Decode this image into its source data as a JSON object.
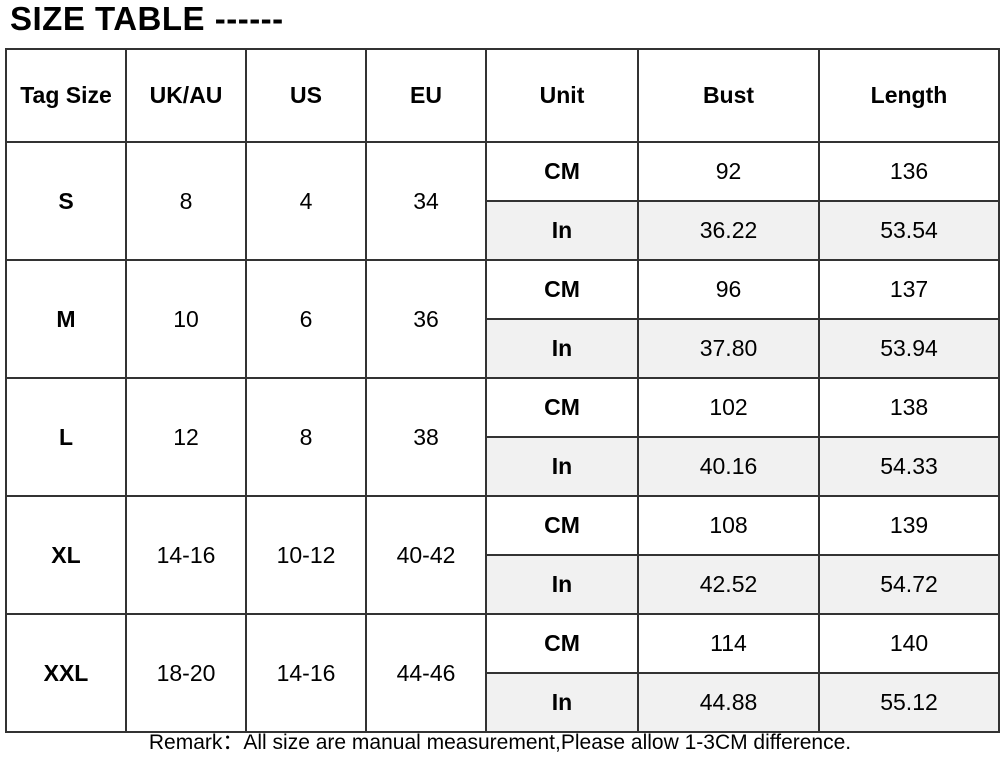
{
  "title": "SIZE TABLE ------",
  "headers": [
    "Tag Size",
    "UK/AU",
    "US",
    "EU",
    "Unit",
    "Bust",
    "Length"
  ],
  "rows": [
    {
      "tag": "S",
      "uk_au": "8",
      "us": "4",
      "eu": "34",
      "cm": {
        "unit": "CM",
        "bust": "92",
        "length": "136"
      },
      "in": {
        "unit": "In",
        "bust": "36.22",
        "length": "53.54"
      }
    },
    {
      "tag": "M",
      "uk_au": "10",
      "us": "6",
      "eu": "36",
      "cm": {
        "unit": "CM",
        "bust": "96",
        "length": "137"
      },
      "in": {
        "unit": "In",
        "bust": "37.80",
        "length": "53.94"
      }
    },
    {
      "tag": "L",
      "uk_au": "12",
      "us": "8",
      "eu": "38",
      "cm": {
        "unit": "CM",
        "bust": "102",
        "length": "138"
      },
      "in": {
        "unit": "In",
        "bust": "40.16",
        "length": "54.33"
      }
    },
    {
      "tag": "XL",
      "uk_au": "14-16",
      "us": "10-12",
      "eu": "40-42",
      "cm": {
        "unit": "CM",
        "bust": "108",
        "length": "139"
      },
      "in": {
        "unit": "In",
        "bust": "42.52",
        "length": "54.72"
      }
    },
    {
      "tag": "XXL",
      "uk_au": "18-20",
      "us": "14-16",
      "eu": "44-46",
      "cm": {
        "unit": "CM",
        "bust": "114",
        "length": "140"
      },
      "in": {
        "unit": "In",
        "bust": "44.88",
        "length": "55.12"
      }
    }
  ],
  "remark": "Remark：All size are manual measurement,Please allow 1-3CM difference.",
  "colors": {
    "border": "#333333",
    "inch_row_bg": "#f1f1f1"
  }
}
